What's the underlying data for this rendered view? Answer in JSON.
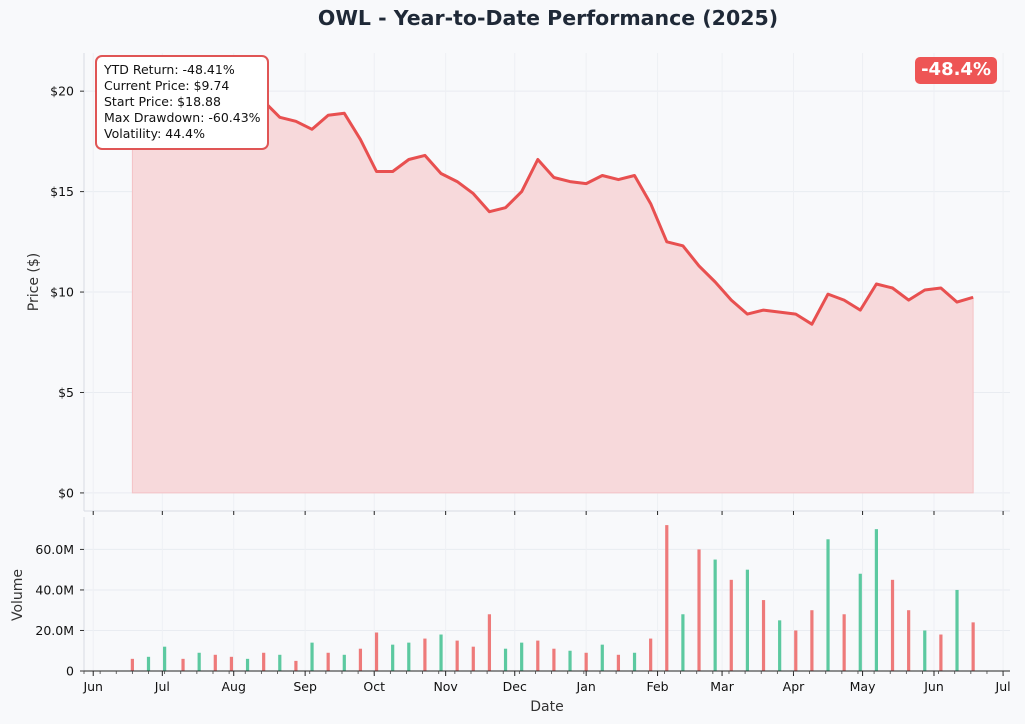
{
  "title": "OWL - Year-to-Date Performance (2025)",
  "stats": {
    "lines": [
      "YTD Return: -48.41%",
      "Current Price: $9.74",
      "Start Price: $18.88",
      "Max Drawdown: -60.43%",
      "Volatility: 44.4%"
    ]
  },
  "badge": "-48.4%",
  "colors": {
    "price_line": "#e85050",
    "price_fill": "#f7d9db",
    "volume_up": "#5cc9a0",
    "volume_down": "#ee7a7a",
    "background": "#f8f9fb",
    "box_border": "#e05555"
  },
  "chart_data": [
    {
      "type": "area",
      "ylabel": "Price ($)",
      "ylim": [
        -0.9,
        21.9
      ],
      "yticks": [
        0,
        5,
        10,
        15,
        20
      ],
      "ytick_labels": [
        "$0",
        "$5",
        "$10",
        "$15",
        "$20"
      ],
      "grid": true,
      "x": [
        "2024-06-18",
        "2024-06-25",
        "2024-07-02",
        "2024-07-10",
        "2024-07-17",
        "2024-07-24",
        "2024-07-31",
        "2024-08-07",
        "2024-08-14",
        "2024-08-21",
        "2024-08-28",
        "2024-09-04",
        "2024-09-11",
        "2024-09-18",
        "2024-09-25",
        "2024-10-02",
        "2024-10-09",
        "2024-10-16",
        "2024-10-23",
        "2024-10-30",
        "2024-11-06",
        "2024-11-13",
        "2024-11-20",
        "2024-11-27",
        "2024-12-04",
        "2024-12-11",
        "2024-12-18",
        "2024-12-25",
        "2025-01-01",
        "2025-01-08",
        "2025-01-15",
        "2025-01-22",
        "2025-01-29",
        "2025-02-05",
        "2025-02-12",
        "2025-02-19",
        "2025-02-26",
        "2025-03-05",
        "2025-03-12",
        "2025-03-19",
        "2025-03-26",
        "2025-04-02",
        "2025-04-09",
        "2025-04-16",
        "2025-04-23",
        "2025-04-30",
        "2025-05-07",
        "2025-05-14",
        "2025-05-21",
        "2025-05-28",
        "2025-06-04",
        "2025-06-11",
        "2025-06-18"
      ],
      "series": [
        {
          "values": [
            18.9,
            19.8,
            20.3,
            20.5,
            19.7,
            19.6,
            19.8,
            19.2,
            19.5,
            18.7,
            18.5,
            18.1,
            18.8,
            18.9,
            17.6,
            16.0,
            16.0,
            16.6,
            16.8,
            15.9,
            15.5,
            14.9,
            14.0,
            14.2,
            15.0,
            16.6,
            15.7,
            15.5,
            15.4,
            15.8,
            15.6,
            15.8,
            14.4,
            12.5,
            12.3,
            11.3,
            10.5,
            9.6,
            8.9,
            9.1,
            9.0,
            8.9,
            8.4,
            9.9,
            9.6,
            9.1,
            10.4,
            10.2,
            9.6,
            10.1,
            10.2,
            9.5,
            9.74
          ]
        }
      ],
      "fill_baseline": 0
    },
    {
      "type": "bar",
      "xlabel": "Date",
      "ylabel": "Volume",
      "ylim": [
        0,
        76000000
      ],
      "yticks": [
        0,
        20000000,
        40000000,
        60000000
      ],
      "ytick_labels": [
        "0",
        "20.0M",
        "40.0M",
        "60.0M"
      ],
      "xtick_labels": [
        "Jun",
        "Jul",
        "Aug",
        "Sep",
        "Oct",
        "Nov",
        "Dec",
        "Jan",
        "Feb",
        "Mar",
        "Apr",
        "May",
        "Jun",
        "Jul"
      ],
      "xticks": [
        "2024-06-01",
        "2024-07-01",
        "2024-08-01",
        "2024-09-01",
        "2024-10-01",
        "2024-11-01",
        "2024-12-01",
        "2025-01-01",
        "2025-02-01",
        "2025-03-01",
        "2025-04-01",
        "2025-05-01",
        "2025-06-01",
        "2025-07-01"
      ],
      "x": [
        "2024-06-18",
        "2024-06-25",
        "2024-07-02",
        "2024-07-10",
        "2024-07-17",
        "2024-07-24",
        "2024-07-31",
        "2024-08-07",
        "2024-08-14",
        "2024-08-21",
        "2024-08-28",
        "2024-09-04",
        "2024-09-11",
        "2024-09-18",
        "2024-09-25",
        "2024-10-02",
        "2024-10-09",
        "2024-10-16",
        "2024-10-23",
        "2024-10-30",
        "2024-11-06",
        "2024-11-13",
        "2024-11-20",
        "2024-11-27",
        "2024-12-04",
        "2024-12-11",
        "2024-12-18",
        "2024-12-25",
        "2025-01-01",
        "2025-01-08",
        "2025-01-15",
        "2025-01-22",
        "2025-01-29",
        "2025-02-05",
        "2025-02-12",
        "2025-02-19",
        "2025-02-26",
        "2025-03-05",
        "2025-03-12",
        "2025-03-19",
        "2025-03-26",
        "2025-04-02",
        "2025-04-09",
        "2025-04-16",
        "2025-04-23",
        "2025-04-30",
        "2025-05-07",
        "2025-05-14",
        "2025-05-21",
        "2025-05-28",
        "2025-06-04",
        "2025-06-11",
        "2025-06-18"
      ],
      "values": [
        6000000,
        7000000,
        12000000,
        6000000,
        9000000,
        8000000,
        7000000,
        6000000,
        9000000,
        8000000,
        5000000,
        14000000,
        9000000,
        8000000,
        11000000,
        19000000,
        13000000,
        14000000,
        16000000,
        18000000,
        15000000,
        12000000,
        28000000,
        11000000,
        14000000,
        15000000,
        11000000,
        10000000,
        9000000,
        13000000,
        8000000,
        9000000,
        16000000,
        72000000,
        28000000,
        60000000,
        55000000,
        45000000,
        50000000,
        35000000,
        25000000,
        20000000,
        30000000,
        65000000,
        28000000,
        48000000,
        70000000,
        45000000,
        30000000,
        20000000,
        18000000,
        40000000,
        24000000
      ],
      "up": [
        false,
        true,
        true,
        false,
        true,
        false,
        false,
        true,
        false,
        true,
        false,
        true,
        false,
        true,
        false,
        false,
        true,
        true,
        false,
        true,
        false,
        false,
        false,
        true,
        true,
        false,
        false,
        true,
        false,
        true,
        false,
        true,
        false,
        false,
        true,
        false,
        true,
        false,
        true,
        false,
        true,
        false,
        false,
        true,
        false,
        true,
        true,
        false,
        false,
        true,
        false,
        true,
        false
      ]
    }
  ]
}
